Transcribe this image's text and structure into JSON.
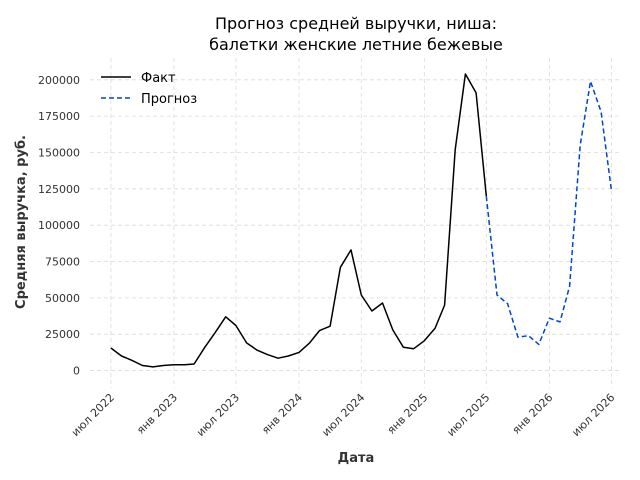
{
  "chart_data": {
    "type": "line",
    "title": "Прогноз средней выручки, ниша:\nбалетки женские летние бежевые",
    "xlabel": "Дата",
    "ylabel": "Средняя выручка, руб.",
    "ylim": [
      -12000,
      215000
    ],
    "xlim": [
      "2022-05-01",
      "2026-08-01"
    ],
    "y_ticks": [
      0,
      25000,
      50000,
      75000,
      100000,
      125000,
      150000,
      175000,
      200000
    ],
    "y_tick_labels": [
      "0",
      "25000",
      "50000",
      "75000",
      "100000",
      "125000",
      "150000",
      "175000",
      "200000"
    ],
    "x_ticks": [
      "2022-07-01",
      "2023-01-01",
      "2023-07-01",
      "2024-01-01",
      "2024-07-01",
      "2025-01-01",
      "2025-07-01",
      "2026-01-01",
      "2026-07-01"
    ],
    "x_tick_labels": [
      "июл 2022",
      "янв 2023",
      "июл 2023",
      "янв 2024",
      "июл 2024",
      "янв 2025",
      "июл 2025",
      "янв 2026",
      "июл 2026"
    ],
    "grid": true,
    "legend_position": "top-left",
    "series": [
      {
        "name": "Факт",
        "style": "solid",
        "color": "#000000",
        "points": [
          [
            "2022-07-01",
            15500
          ],
          [
            "2022-08-01",
            10000
          ],
          [
            "2022-09-01",
            7000
          ],
          [
            "2022-10-01",
            3500
          ],
          [
            "2022-11-01",
            2500
          ],
          [
            "2022-12-01",
            3500
          ],
          [
            "2023-01-01",
            4000
          ],
          [
            "2023-02-01",
            4000
          ],
          [
            "2023-03-01",
            4500
          ],
          [
            "2023-04-01",
            16000
          ],
          [
            "2023-05-01",
            26000
          ],
          [
            "2023-06-01",
            37000
          ],
          [
            "2023-07-01",
            31000
          ],
          [
            "2023-08-01",
            19000
          ],
          [
            "2023-09-01",
            14000
          ],
          [
            "2023-10-01",
            11000
          ],
          [
            "2023-11-01",
            8500
          ],
          [
            "2023-12-01",
            10000
          ],
          [
            "2024-01-01",
            12500
          ],
          [
            "2024-02-01",
            19000
          ],
          [
            "2024-03-01",
            27500
          ],
          [
            "2024-04-01",
            30500
          ],
          [
            "2024-05-01",
            71000
          ],
          [
            "2024-06-01",
            83000
          ],
          [
            "2024-07-01",
            52000
          ],
          [
            "2024-08-01",
            41000
          ],
          [
            "2024-09-01",
            46500
          ],
          [
            "2024-10-01",
            28000
          ],
          [
            "2024-11-01",
            16000
          ],
          [
            "2024-12-01",
            15000
          ],
          [
            "2025-01-01",
            20500
          ],
          [
            "2025-02-01",
            29000
          ],
          [
            "2025-03-01",
            45000
          ],
          [
            "2025-04-01",
            152000
          ],
          [
            "2025-05-01",
            204000
          ],
          [
            "2025-06-01",
            191000
          ],
          [
            "2025-07-01",
            120000
          ]
        ]
      },
      {
        "name": "Прогноз",
        "style": "dashed",
        "color": "#0044cc",
        "points": [
          [
            "2025-07-01",
            120000
          ],
          [
            "2025-08-01",
            52000
          ],
          [
            "2025-09-01",
            46000
          ],
          [
            "2025-10-01",
            23000
          ],
          [
            "2025-11-01",
            24000
          ],
          [
            "2025-12-01",
            18000
          ],
          [
            "2026-01-01",
            36000
          ],
          [
            "2026-02-01",
            33500
          ],
          [
            "2026-03-01",
            58000
          ],
          [
            "2026-04-01",
            155000
          ],
          [
            "2026-05-01",
            199000
          ],
          [
            "2026-06-01",
            178000
          ],
          [
            "2026-07-01",
            124000
          ]
        ]
      }
    ]
  }
}
